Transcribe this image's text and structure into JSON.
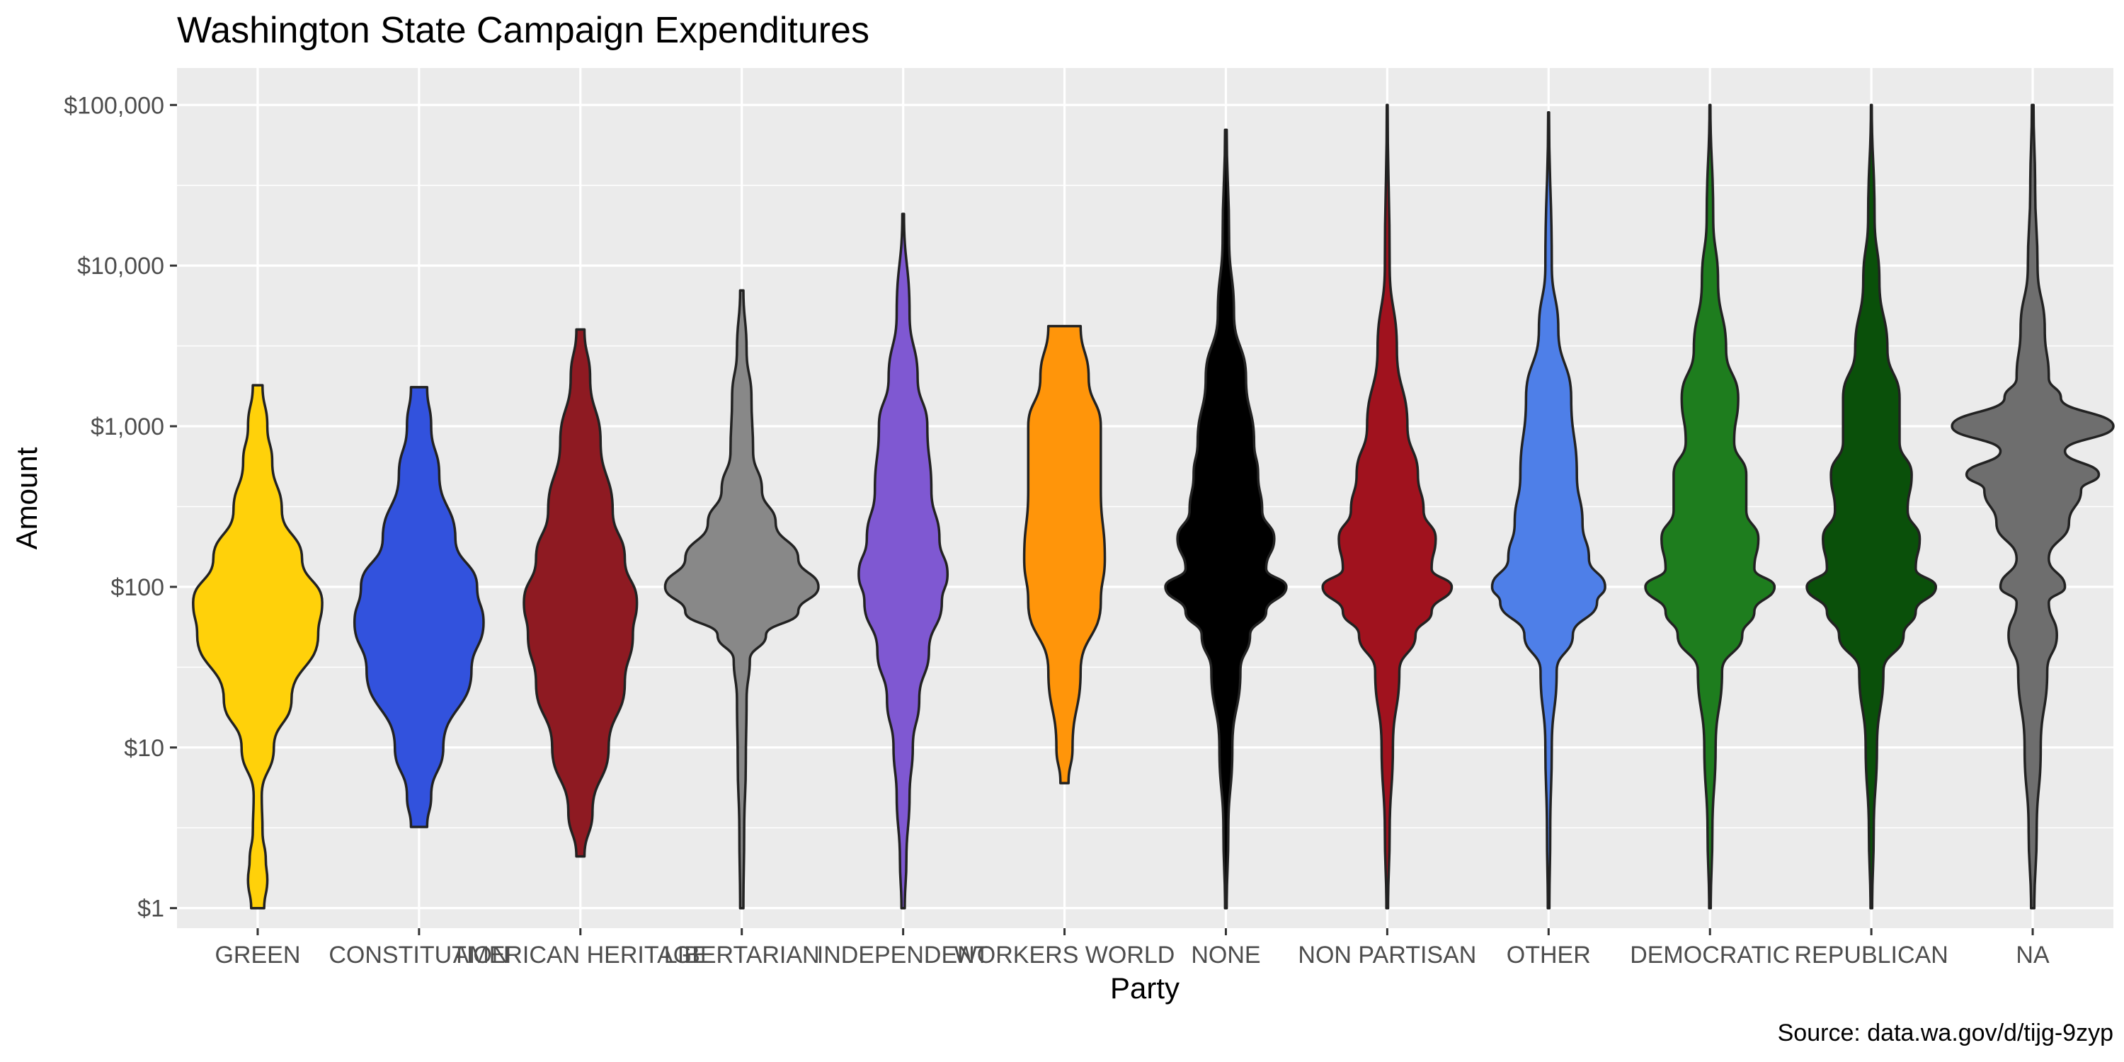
{
  "chart_data": {
    "type": "violin",
    "title": "Washington State Campaign Expenditures",
    "xlabel": "Party",
    "ylabel": "Amount",
    "caption": "Source: data.wa.gov/d/tijg-9zyp",
    "y_scale": "log10",
    "ylim": [
      0.75,
      170000
    ],
    "y_ticks": [
      {
        "value": 1,
        "label": "$1"
      },
      {
        "value": 10,
        "label": "$10"
      },
      {
        "value": 100,
        "label": "$100"
      },
      {
        "value": 1000,
        "label": "$1,000"
      },
      {
        "value": 10000,
        "label": "$10,000"
      },
      {
        "value": 100000,
        "label": "$100,000"
      }
    ],
    "grid": true,
    "legend": "none",
    "categories": [
      "GREEN",
      "CONSTITUTION",
      "AMERICAN HERITAGE",
      "LIBERTARIAN",
      "INDEPENDENT",
      "WORKERS WORLD",
      "NONE",
      "NON PARTISAN",
      "OTHER",
      "DEMOCRATIC",
      "REPUBLICAN",
      "NA"
    ],
    "series": [
      {
        "category": "GREEN",
        "color": "#FFD10A",
        "min": 1,
        "max": 1800,
        "density": [
          [
            1,
            0.08
          ],
          [
            1.5,
            0.12
          ],
          [
            2,
            0.1
          ],
          [
            3,
            0.06
          ],
          [
            5,
            0.05
          ],
          [
            10,
            0.2
          ],
          [
            20,
            0.42
          ],
          [
            50,
            0.75
          ],
          [
            80,
            0.8
          ],
          [
            150,
            0.55
          ],
          [
            300,
            0.3
          ],
          [
            600,
            0.18
          ],
          [
            1000,
            0.12
          ],
          [
            1800,
            0.06
          ]
        ]
      },
      {
        "category": "CONSTITUTION",
        "color": "#3252DD",
        "min": 3.2,
        "max": 1750,
        "density": [
          [
            3.2,
            0.1
          ],
          [
            5,
            0.15
          ],
          [
            10,
            0.3
          ],
          [
            30,
            0.65
          ],
          [
            60,
            0.8
          ],
          [
            100,
            0.72
          ],
          [
            200,
            0.45
          ],
          [
            500,
            0.25
          ],
          [
            1000,
            0.15
          ],
          [
            1750,
            0.1
          ]
        ]
      },
      {
        "category": "AMERICAN HERITAGE",
        "color": "#8E1A22",
        "min": 2.1,
        "max": 4000,
        "density": [
          [
            2.1,
            0.05
          ],
          [
            4,
            0.15
          ],
          [
            10,
            0.35
          ],
          [
            25,
            0.55
          ],
          [
            50,
            0.65
          ],
          [
            80,
            0.7
          ],
          [
            150,
            0.55
          ],
          [
            300,
            0.4
          ],
          [
            800,
            0.25
          ],
          [
            2000,
            0.12
          ],
          [
            4000,
            0.05
          ]
        ]
      },
      {
        "category": "LIBERTARIAN",
        "color": "#888888",
        "min": 1,
        "max": 7000,
        "density": [
          [
            1,
            0.02
          ],
          [
            3,
            0.03
          ],
          [
            8,
            0.05
          ],
          [
            20,
            0.06
          ],
          [
            35,
            0.1
          ],
          [
            50,
            0.3
          ],
          [
            70,
            0.7
          ],
          [
            100,
            0.95
          ],
          [
            150,
            0.7
          ],
          [
            250,
            0.42
          ],
          [
            400,
            0.25
          ],
          [
            700,
            0.14
          ],
          [
            1500,
            0.12
          ],
          [
            3000,
            0.06
          ],
          [
            7000,
            0.02
          ]
        ]
      },
      {
        "category": "INDEPENDENT",
        "color": "#7F58D2",
        "min": 1,
        "max": 21000,
        "density": [
          [
            1,
            0.02
          ],
          [
            2,
            0.04
          ],
          [
            5,
            0.08
          ],
          [
            10,
            0.12
          ],
          [
            20,
            0.2
          ],
          [
            40,
            0.32
          ],
          [
            80,
            0.48
          ],
          [
            120,
            0.55
          ],
          [
            200,
            0.45
          ],
          [
            400,
            0.35
          ],
          [
            1000,
            0.3
          ],
          [
            2000,
            0.18
          ],
          [
            5000,
            0.08
          ],
          [
            21000,
            0.01
          ]
        ]
      },
      {
        "category": "WORKERS WORLD",
        "color": "#FF950A",
        "min": 6,
        "max": 4200,
        "density": [
          [
            6,
            0.05
          ],
          [
            10,
            0.1
          ],
          [
            30,
            0.2
          ],
          [
            80,
            0.45
          ],
          [
            150,
            0.5
          ],
          [
            400,
            0.45
          ],
          [
            1000,
            0.45
          ],
          [
            2000,
            0.3
          ],
          [
            4200,
            0.2
          ]
        ]
      },
      {
        "category": "NONE",
        "color": "#000000",
        "min": 1,
        "max": 70000,
        "density": [
          [
            1,
            0.01
          ],
          [
            3,
            0.03
          ],
          [
            10,
            0.08
          ],
          [
            30,
            0.18
          ],
          [
            50,
            0.3
          ],
          [
            70,
            0.5
          ],
          [
            100,
            0.75
          ],
          [
            130,
            0.5
          ],
          [
            200,
            0.6
          ],
          [
            300,
            0.45
          ],
          [
            500,
            0.4
          ],
          [
            800,
            0.35
          ],
          [
            2000,
            0.25
          ],
          [
            5000,
            0.1
          ],
          [
            15000,
            0.04
          ],
          [
            70000,
            0.01
          ]
        ]
      },
      {
        "category": "NON PARTISAN",
        "color": "#A0121E",
        "min": 1,
        "max": 100000,
        "density": [
          [
            1,
            0.01
          ],
          [
            3,
            0.03
          ],
          [
            10,
            0.07
          ],
          [
            30,
            0.15
          ],
          [
            50,
            0.35
          ],
          [
            70,
            0.55
          ],
          [
            100,
            0.8
          ],
          [
            130,
            0.55
          ],
          [
            200,
            0.6
          ],
          [
            300,
            0.45
          ],
          [
            500,
            0.38
          ],
          [
            1000,
            0.25
          ],
          [
            3000,
            0.12
          ],
          [
            10000,
            0.03
          ],
          [
            100000,
            0.005
          ]
        ]
      },
      {
        "category": "OTHER",
        "color": "#4E7FE8",
        "min": 1,
        "max": 90000,
        "density": [
          [
            1,
            0.01
          ],
          [
            3,
            0.02
          ],
          [
            10,
            0.04
          ],
          [
            30,
            0.1
          ],
          [
            50,
            0.3
          ],
          [
            80,
            0.6
          ],
          [
            100,
            0.7
          ],
          [
            150,
            0.5
          ],
          [
            250,
            0.42
          ],
          [
            500,
            0.35
          ],
          [
            1500,
            0.28
          ],
          [
            4000,
            0.12
          ],
          [
            10000,
            0.04
          ],
          [
            90000,
            0.005
          ]
        ]
      },
      {
        "category": "DEMOCRATIC",
        "color": "#1E7D1E",
        "min": 1,
        "max": 100000,
        "density": [
          [
            1,
            0.01
          ],
          [
            3,
            0.03
          ],
          [
            10,
            0.07
          ],
          [
            30,
            0.15
          ],
          [
            50,
            0.4
          ],
          [
            70,
            0.55
          ],
          [
            100,
            0.8
          ],
          [
            130,
            0.55
          ],
          [
            200,
            0.6
          ],
          [
            300,
            0.45
          ],
          [
            500,
            0.45
          ],
          [
            800,
            0.3
          ],
          [
            1500,
            0.35
          ],
          [
            3000,
            0.2
          ],
          [
            8000,
            0.1
          ],
          [
            20000,
            0.04
          ],
          [
            100000,
            0.005
          ]
        ]
      },
      {
        "category": "REPUBLICAN",
        "color": "#0A500A",
        "min": 1,
        "max": 100000,
        "density": [
          [
            1,
            0.01
          ],
          [
            3,
            0.03
          ],
          [
            10,
            0.07
          ],
          [
            30,
            0.15
          ],
          [
            50,
            0.4
          ],
          [
            70,
            0.55
          ],
          [
            100,
            0.8
          ],
          [
            130,
            0.55
          ],
          [
            200,
            0.6
          ],
          [
            300,
            0.45
          ],
          [
            500,
            0.5
          ],
          [
            800,
            0.35
          ],
          [
            1500,
            0.35
          ],
          [
            3000,
            0.2
          ],
          [
            8000,
            0.1
          ],
          [
            20000,
            0.04
          ],
          [
            100000,
            0.005
          ]
        ]
      },
      {
        "category": "NA",
        "color": "#6E6E6E",
        "min": 1,
        "max": 100000,
        "density": [
          [
            1,
            0.02
          ],
          [
            3,
            0.05
          ],
          [
            10,
            0.1
          ],
          [
            30,
            0.18
          ],
          [
            50,
            0.3
          ],
          [
            80,
            0.2
          ],
          [
            100,
            0.4
          ],
          [
            150,
            0.2
          ],
          [
            250,
            0.45
          ],
          [
            400,
            0.6
          ],
          [
            500,
            0.82
          ],
          [
            700,
            0.4
          ],
          [
            1000,
            1.0
          ],
          [
            1500,
            0.35
          ],
          [
            2000,
            0.2
          ],
          [
            4000,
            0.15
          ],
          [
            10000,
            0.06
          ],
          [
            30000,
            0.03
          ],
          [
            100000,
            0.01
          ]
        ]
      }
    ]
  }
}
